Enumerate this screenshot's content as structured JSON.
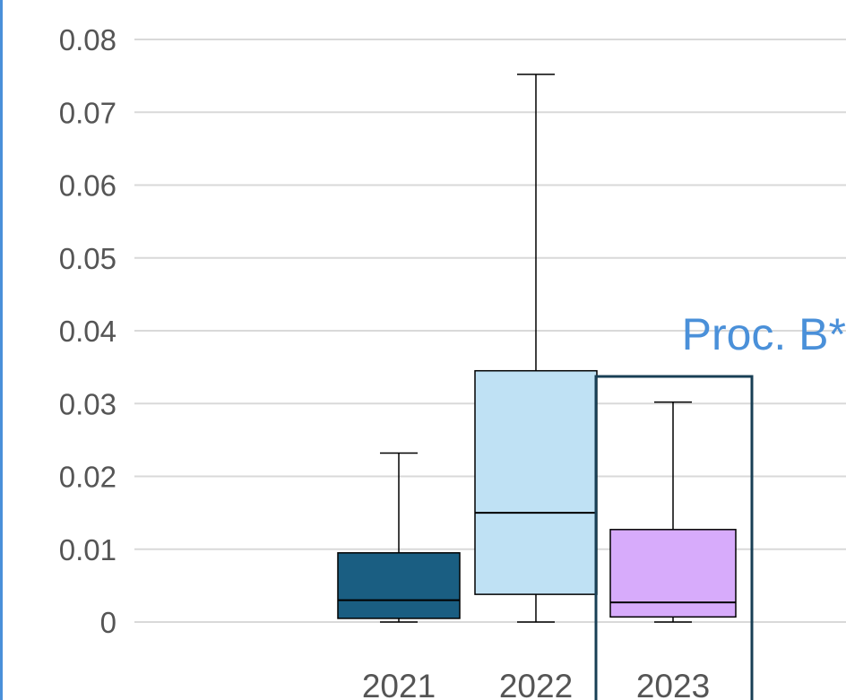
{
  "chart_data": {
    "type": "box",
    "title": "",
    "xlabel": "",
    "ylabel": "",
    "ylim": [
      0,
      0.08
    ],
    "yticks": [
      "0",
      "0.01",
      "0.02",
      "0.03",
      "0.04",
      "0.05",
      "0.06",
      "0.07",
      "0.08"
    ],
    "grid": true,
    "categories": [
      "2021",
      "2022",
      "2023"
    ],
    "boxes": [
      {
        "category": "2021",
        "min": 0.0,
        "q1": 0.0005,
        "median": 0.003,
        "q3": 0.0095,
        "max": 0.0232,
        "color": "#1a5e82"
      },
      {
        "category": "2022",
        "min": 0.0,
        "q1": 0.0038,
        "median": 0.015,
        "q3": 0.0345,
        "max": 0.0752,
        "color": "#bfe1f4"
      },
      {
        "category": "2023",
        "min": 0.0,
        "q1": 0.0007,
        "median": 0.0027,
        "q3": 0.0127,
        "max": 0.0302,
        "color": "#d7abfb"
      }
    ],
    "annotation": {
      "text": "Proc. B*",
      "color": "#4a90d9",
      "highlights": "2023"
    },
    "highlight_color": "#183f55",
    "accent_edge_color": "#4a90d9"
  }
}
